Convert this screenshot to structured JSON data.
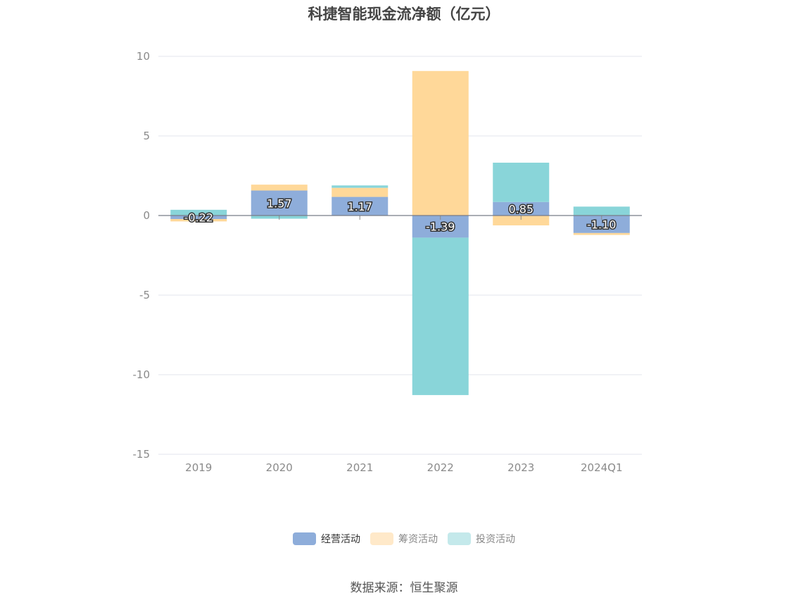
{
  "chart_data": {
    "type": "bar",
    "stacked": true,
    "title": "科捷智能现金流净额（亿元）",
    "categories": [
      "2019",
      "2020",
      "2021",
      "2022",
      "2023",
      "2024Q1"
    ],
    "series": [
      {
        "name": "经营活动",
        "color": "#8eadda",
        "values": [
          -0.22,
          1.57,
          1.17,
          -1.39,
          0.85,
          -1.1
        ]
      },
      {
        "name": "筹资活动",
        "color": "#ffd899",
        "values": [
          -0.15,
          0.37,
          0.57,
          9.08,
          -0.62,
          -0.12
        ]
      },
      {
        "name": "投资活动",
        "color": "#89d5d9",
        "values": [
          0.36,
          -0.2,
          0.15,
          -9.89,
          2.47,
          0.56
        ]
      }
    ],
    "data_labels_series": "经营活动",
    "ylim": [
      -15,
      10
    ],
    "yticks": [
      10,
      5,
      0,
      -5,
      -10,
      -15
    ],
    "grid": true,
    "legend_position": "bottom",
    "legend_colors": [
      "#8eadda",
      "#ffe9c9",
      "#c4e9eb"
    ],
    "source": "数据来源：恒生聚源"
  }
}
